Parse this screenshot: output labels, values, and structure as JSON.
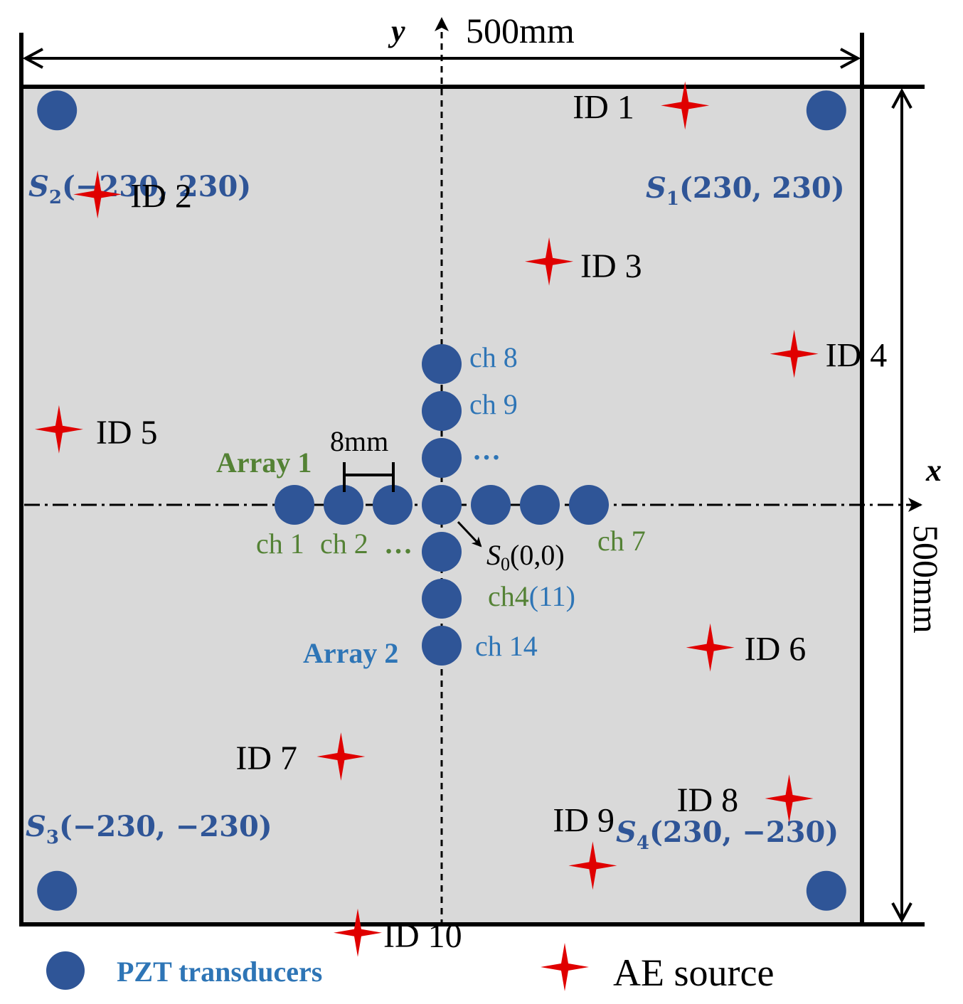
{
  "colors": {
    "plate": "#d9d9d9",
    "border": "#000000",
    "transducer": "#2f5597",
    "sensor_label": "#2f5597",
    "array1_label": "#548235",
    "array2_label": "#2e75b6",
    "ae_source": "#e00000",
    "ch_blue": "#2e75b6",
    "ch_green": "#548235"
  },
  "dimensions": {
    "width_label": "500mm",
    "height_label": "500mm",
    "spacing_label": "8mm"
  },
  "axes": {
    "x_label": "x",
    "y_label": "y"
  },
  "corner_sensors": [
    {
      "id": "S1",
      "label": "S1(230, 230)",
      "x": 230,
      "y": 230,
      "sym": "S",
      "sub": "1",
      "coords": "(230, 230)"
    },
    {
      "id": "S2",
      "label": "S2(−230, 230)",
      "x": -230,
      "y": 230,
      "sym": "S",
      "sub": "2",
      "coords": "(−230, 230)"
    },
    {
      "id": "S3",
      "label": "S3(−230, −230)",
      "x": -230,
      "y": -230,
      "sym": "S",
      "sub": "3",
      "coords": "(−230, −230)"
    },
    {
      "id": "S4",
      "label": "S4(230, −230)",
      "x": 230,
      "y": -230,
      "sym": "S",
      "sub": "4",
      "coords": "(230, −230)"
    }
  ],
  "origin": {
    "label": "S0(0,0)",
    "sym": "S",
    "sub": "0",
    "coords": "(0,0)"
  },
  "arrays": {
    "array1": {
      "label": "Array 1",
      "elements": 7,
      "pitch_mm": 8
    },
    "array2": {
      "label": "Array 2",
      "elements": 7,
      "pitch_mm": 8
    }
  },
  "channel_labels": {
    "ch1": "ch 1",
    "ch2": "ch 2",
    "h_dots": "…",
    "ch7": "ch 7",
    "ch8": "ch 8",
    "ch9": "ch 9",
    "v_dots": "…",
    "ch4": "ch4",
    "ch11": "(11)",
    "ch14": "ch 14"
  },
  "ae_sources": [
    {
      "id": "ID 1",
      "x": 145,
      "y": 238
    },
    {
      "id": "ID 2",
      "x": -205,
      "y": 185
    },
    {
      "id": "ID 3",
      "x": 64,
      "y": 145
    },
    {
      "id": "ID 4",
      "x": 210,
      "y": 90
    },
    {
      "id": "ID 5",
      "x": -228,
      "y": 45
    },
    {
      "id": "ID 6",
      "x": 160,
      "y": -85
    },
    {
      "id": "ID 7",
      "x": -60,
      "y": -150
    },
    {
      "id": "ID 8",
      "x": 207,
      "y": -175
    },
    {
      "id": "ID 9",
      "x": 90,
      "y": -215
    },
    {
      "id": "ID 10",
      "x": -50,
      "y": -255
    }
  ],
  "legend": {
    "transducer_label": "PZT transducers",
    "source_label": "AE source"
  }
}
